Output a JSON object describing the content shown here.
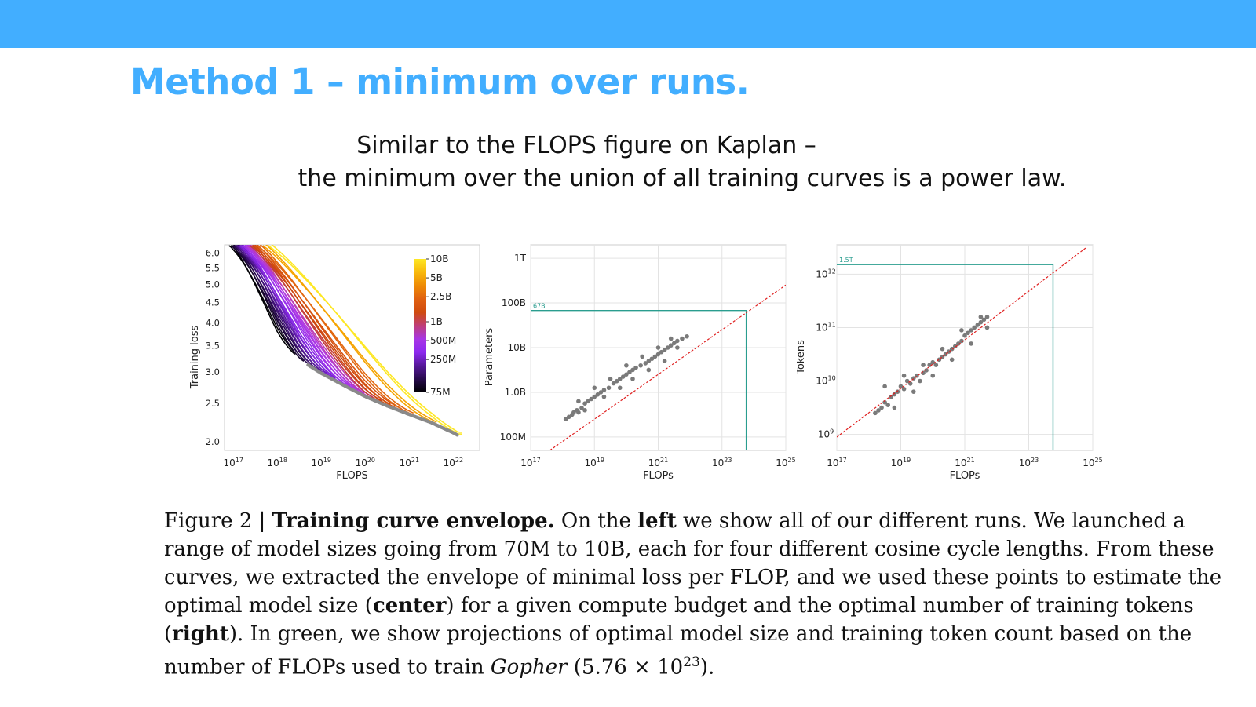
{
  "slide": {
    "title": "Method 1 – minimum over runs.",
    "subtitle_line1": "Similar to the FLOPS figure on Kaplan –",
    "subtitle_line2": "the minimum over the union of all training curves is a power law."
  },
  "caption": {
    "fig": "Figure 2 | ",
    "bold1": "Training curve envelope.",
    "t1": " On the ",
    "bold_left": "left",
    "t2": " we show all of our different runs. We launched a",
    "line2": "range of model sizes going from 70M to 10B, each for four different cosine cycle lengths. From these",
    "line3": "curves, we extracted the envelope of minimal loss per FLOP, and we used these points to estimate the",
    "l4a": "optimal model size (",
    "bold_center": "center",
    "l4b": ") for a given compute budget and the optimal number of training tokens",
    "l5a": "(",
    "bold_right": "right",
    "l5b": "). In green, we show projections of optimal model size and training token count based on the",
    "l6a": "number of FLOPs used to train ",
    "italic_gopher": "Gopher",
    "l6b": " (5.76 × 10",
    "sup23": "23",
    "l6c": ")."
  },
  "chart_data": [
    {
      "type": "line",
      "xlabel": "FLOPS",
      "ylabel": "Training loss",
      "xscale": "log",
      "yscale": "log",
      "xlim_exp": [
        16.8,
        22.6
      ],
      "ylim": [
        1.9,
        6.3
      ],
      "x_ticks_exp": [
        17,
        18,
        19,
        20,
        21,
        22
      ],
      "y_ticks": [
        "6.0",
        "5.5",
        "5.0",
        "4.5",
        "4.0",
        "3.5",
        "3.0",
        "2.5",
        "2.0"
      ],
      "y_tick_values": [
        6.0,
        5.5,
        5.0,
        4.5,
        4.0,
        3.5,
        3.0,
        2.5,
        2.0
      ],
      "colorbar_labels": [
        "10B",
        "5B",
        "2.5B",
        "1B",
        "500M",
        "250M",
        "75M"
      ],
      "colorbar_values_m": [
        10000,
        5000,
        2500,
        1000,
        500,
        250,
        75
      ],
      "envelope": [
        [
          17.0,
          5.1
        ],
        [
          17.5,
          4.3
        ],
        [
          18.0,
          3.65
        ],
        [
          18.5,
          3.25
        ],
        [
          19.0,
          3.0
        ],
        [
          19.5,
          2.8
        ],
        [
          20.0,
          2.62
        ],
        [
          20.5,
          2.48
        ],
        [
          21.0,
          2.36
        ],
        [
          21.5,
          2.25
        ],
        [
          22.0,
          2.12
        ],
        [
          22.1,
          2.09
        ]
      ],
      "series_model_sizes_m": [
        75,
        100,
        125,
        160,
        200,
        250,
        300,
        400,
        500,
        600,
        750,
        1000,
        1300,
        1700,
        2500,
        5000,
        10000
      ]
    },
    {
      "type": "scatter",
      "xlabel": "FLOPs",
      "ylabel": "Parameters",
      "xscale": "log",
      "yscale": "log",
      "xlim_exp": [
        17,
        25
      ],
      "ylim_exp": [
        7.7,
        12.3
      ],
      "x_ticks_exp": [
        17,
        19,
        21,
        23,
        25
      ],
      "y_ticks": [
        "1T",
        "100B",
        "10B",
        "1.0B",
        "100M"
      ],
      "y_tick_exps": [
        12,
        11,
        10,
        9,
        8
      ],
      "fit_line_exp": [
        [
          17.0,
          7.4
        ],
        [
          25.0,
          11.4
        ]
      ],
      "projection": {
        "x_exp": 23.76,
        "y_exp": 10.83,
        "label": "67B"
      },
      "points": [
        [
          18.1,
          8.4
        ],
        [
          18.2,
          8.45
        ],
        [
          18.3,
          8.5
        ],
        [
          18.35,
          8.55
        ],
        [
          18.45,
          8.6
        ],
        [
          18.5,
          8.55
        ],
        [
          18.6,
          8.65
        ],
        [
          18.7,
          8.75
        ],
        [
          18.8,
          8.8
        ],
        [
          18.9,
          8.85
        ],
        [
          19.0,
          8.9
        ],
        [
          19.1,
          8.95
        ],
        [
          19.2,
          9.0
        ],
        [
          19.3,
          9.05
        ],
        [
          19.45,
          9.1
        ],
        [
          19.6,
          9.2
        ],
        [
          19.7,
          9.25
        ],
        [
          19.8,
          9.3
        ],
        [
          19.9,
          9.35
        ],
        [
          20.0,
          9.4
        ],
        [
          20.1,
          9.45
        ],
        [
          20.2,
          9.5
        ],
        [
          20.3,
          9.55
        ],
        [
          20.45,
          9.6
        ],
        [
          20.6,
          9.65
        ],
        [
          20.7,
          9.7
        ],
        [
          20.8,
          9.75
        ],
        [
          20.9,
          9.8
        ],
        [
          21.0,
          9.85
        ],
        [
          21.1,
          9.9
        ],
        [
          21.2,
          9.95
        ],
        [
          21.3,
          10.0
        ],
        [
          21.4,
          10.05
        ],
        [
          21.5,
          10.1
        ],
        [
          21.6,
          10.15
        ],
        [
          21.75,
          10.2
        ],
        [
          21.9,
          10.25
        ],
        [
          18.5,
          8.8
        ],
        [
          18.7,
          8.6
        ],
        [
          19.0,
          9.1
        ],
        [
          19.3,
          8.9
        ],
        [
          19.5,
          9.3
        ],
        [
          19.8,
          9.1
        ],
        [
          20.0,
          9.6
        ],
        [
          20.2,
          9.3
        ],
        [
          20.5,
          9.8
        ],
        [
          20.7,
          9.5
        ],
        [
          21.0,
          10.0
        ],
        [
          21.2,
          9.7
        ],
        [
          21.4,
          10.2
        ],
        [
          21.6,
          10.0
        ]
      ]
    },
    {
      "type": "scatter",
      "xlabel": "FLOPs",
      "ylabel": "Tokens",
      "xscale": "log",
      "yscale": "log",
      "xlim_exp": [
        17,
        25
      ],
      "ylim_exp": [
        8.7,
        12.55
      ],
      "x_ticks_exp": [
        17,
        19,
        21,
        23,
        25
      ],
      "y_tick_exps": [
        12,
        11,
        10,
        9
      ],
      "fit_line_exp": [
        [
          17.0,
          8.95
        ],
        [
          24.8,
          12.5
        ]
      ],
      "projection": {
        "x_exp": 23.76,
        "y_exp": 12.18,
        "label": "1.5T"
      },
      "points": [
        [
          18.2,
          9.4
        ],
        [
          18.3,
          9.45
        ],
        [
          18.4,
          9.5
        ],
        [
          18.5,
          9.6
        ],
        [
          18.6,
          9.55
        ],
        [
          18.7,
          9.7
        ],
        [
          18.8,
          9.75
        ],
        [
          18.9,
          9.8
        ],
        [
          19.0,
          9.9
        ],
        [
          19.1,
          9.85
        ],
        [
          19.2,
          10.0
        ],
        [
          19.3,
          9.95
        ],
        [
          19.4,
          10.05
        ],
        [
          19.5,
          10.1
        ],
        [
          19.6,
          10.0
        ],
        [
          19.7,
          10.15
        ],
        [
          19.8,
          10.2
        ],
        [
          19.9,
          10.3
        ],
        [
          20.0,
          10.35
        ],
        [
          20.1,
          10.3
        ],
        [
          20.2,
          10.4
        ],
        [
          20.3,
          10.45
        ],
        [
          20.4,
          10.5
        ],
        [
          20.5,
          10.55
        ],
        [
          20.6,
          10.6
        ],
        [
          20.7,
          10.65
        ],
        [
          20.8,
          10.7
        ],
        [
          20.9,
          10.75
        ],
        [
          21.0,
          10.85
        ],
        [
          21.1,
          10.9
        ],
        [
          21.2,
          10.95
        ],
        [
          21.3,
          11.0
        ],
        [
          21.4,
          11.05
        ],
        [
          21.5,
          11.1
        ],
        [
          21.6,
          11.15
        ],
        [
          21.7,
          11.2
        ],
        [
          18.5,
          9.9
        ],
        [
          18.8,
          9.5
        ],
        [
          19.1,
          10.1
        ],
        [
          19.4,
          9.8
        ],
        [
          19.7,
          10.3
        ],
        [
          20.0,
          10.1
        ],
        [
          20.3,
          10.6
        ],
        [
          20.6,
          10.4
        ],
        [
          20.9,
          10.95
        ],
        [
          21.2,
          10.7
        ],
        [
          21.5,
          11.2
        ],
        [
          21.7,
          11.0
        ]
      ]
    }
  ],
  "colors": {
    "accent": "#42aeff",
    "projection": "#2a9d8f",
    "fit": "#e02020",
    "points": "#7a7a7a"
  }
}
